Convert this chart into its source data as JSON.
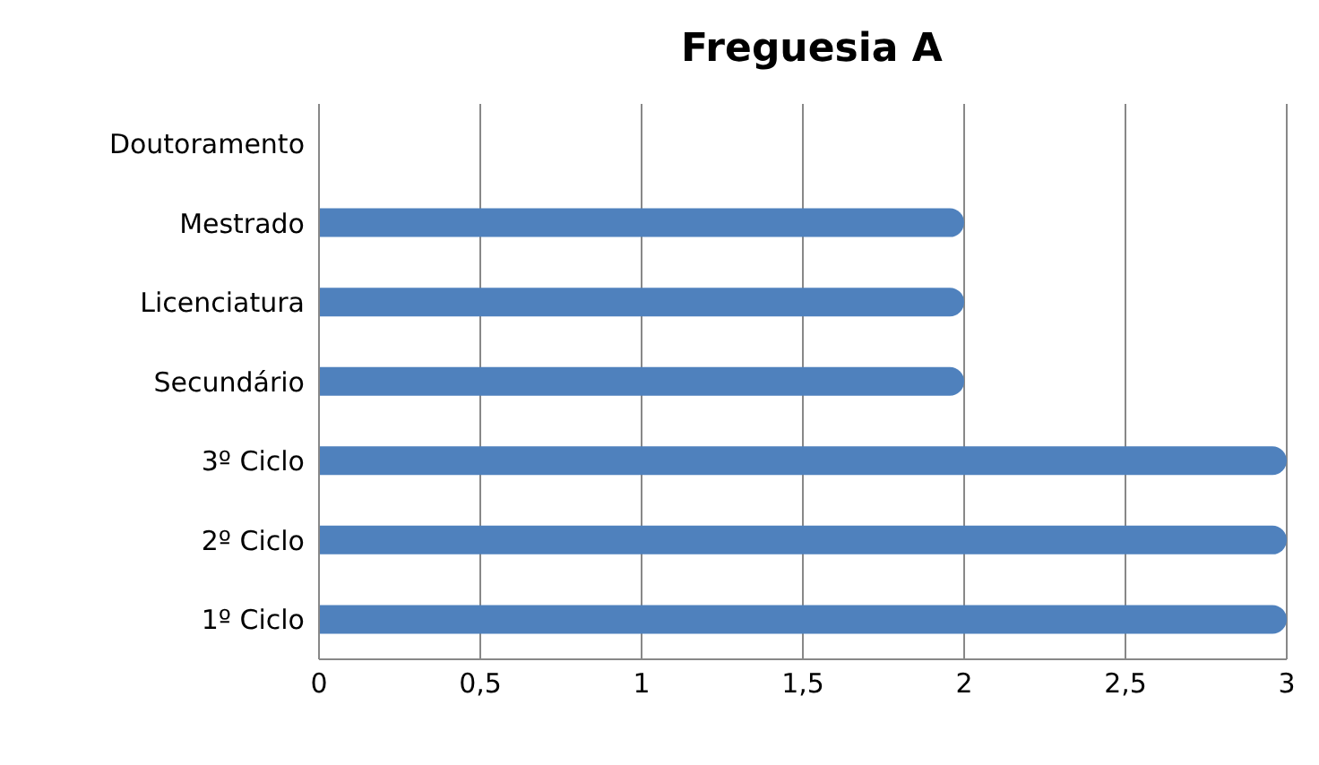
{
  "chart_data": {
    "type": "bar",
    "orientation": "horizontal",
    "title": "Freguesia A",
    "categories": [
      "Doutoramento",
      "Mestrado",
      "Licenciatura",
      "Secundário",
      "3º Ciclo",
      "2º Ciclo",
      "1º Ciclo"
    ],
    "values": [
      0,
      2,
      2,
      2,
      3,
      3,
      3
    ],
    "color": "#4f81bd",
    "xlim": [
      0,
      3
    ],
    "xticks": [
      0,
      {
        "value": 0.5,
        "label": "0,5"
      },
      1,
      {
        "value": 1.5,
        "label": "1,5"
      },
      2,
      {
        "value": 2.5,
        "label": "2,5"
      },
      3
    ],
    "grid": "x"
  }
}
